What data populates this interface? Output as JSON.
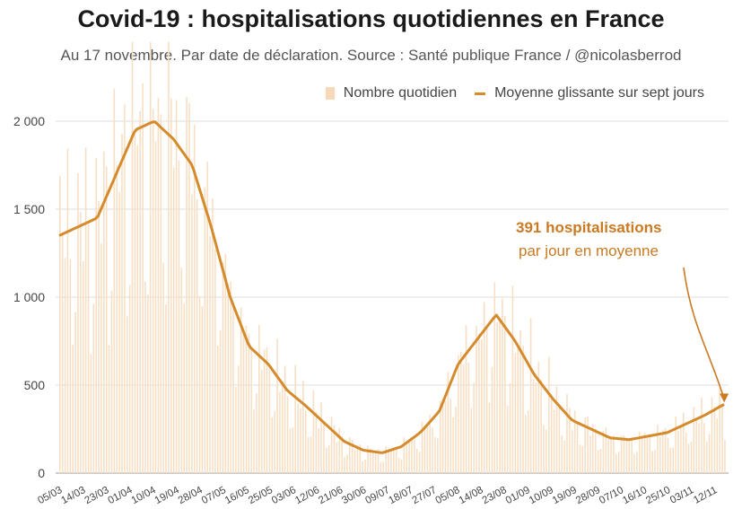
{
  "chart_data": {
    "type": "bar",
    "title": "Covid-19 : hospitalisations quotidiennes en France",
    "subtitle": "Au 17 novembre. Par date de déclaration. Source : Santé publique France / @nicolasberrod",
    "legend": [
      "Nombre quotidien",
      "Moyenne glissante sur sept jours"
    ],
    "legend_position": "top-right",
    "ylim": [
      0,
      2000
    ],
    "yticks": [
      {
        "value": 0,
        "label": "0"
      },
      {
        "value": 500,
        "label": "500"
      },
      {
        "value": 1000,
        "label": "1 000"
      },
      {
        "value": 1500,
        "label": "1 500"
      },
      {
        "value": 2000,
        "label": "2 000"
      }
    ],
    "xticks": [
      "05/03",
      "14/03",
      "23/03",
      "01/04",
      "10/04",
      "19/04",
      "28/04",
      "07/05",
      "16/05",
      "25/05",
      "03/06",
      "12/06",
      "21/06",
      "30/06",
      "09/07",
      "18/07",
      "27/07",
      "05/08",
      "14/08",
      "23/08",
      "01/09",
      "10/09",
      "19/09",
      "28/09",
      "07/10",
      "16/10",
      "25/10",
      "03/11",
      "12/11"
    ],
    "series": [
      {
        "name": "Moyenne glissante sur sept jours",
        "type": "line",
        "weekly_values": [
          1350,
          1400,
          1450,
          1700,
          1950,
          2000,
          1900,
          1750,
          1400,
          1000,
          720,
          620,
          470,
          380,
          280,
          180,
          130,
          115,
          150,
          230,
          350,
          620,
          760,
          900,
          750,
          560,
          420,
          300,
          250,
          200,
          190,
          210,
          230,
          280,
          330,
          391
        ]
      },
      {
        "name": "Nombre quotidien",
        "type": "bar",
        "note": "daily values fluctuate around the weekly moving average"
      }
    ],
    "annotation": {
      "value_label": "391 hospitalisations",
      "text": "par jour en moyenne",
      "value": 391
    }
  }
}
